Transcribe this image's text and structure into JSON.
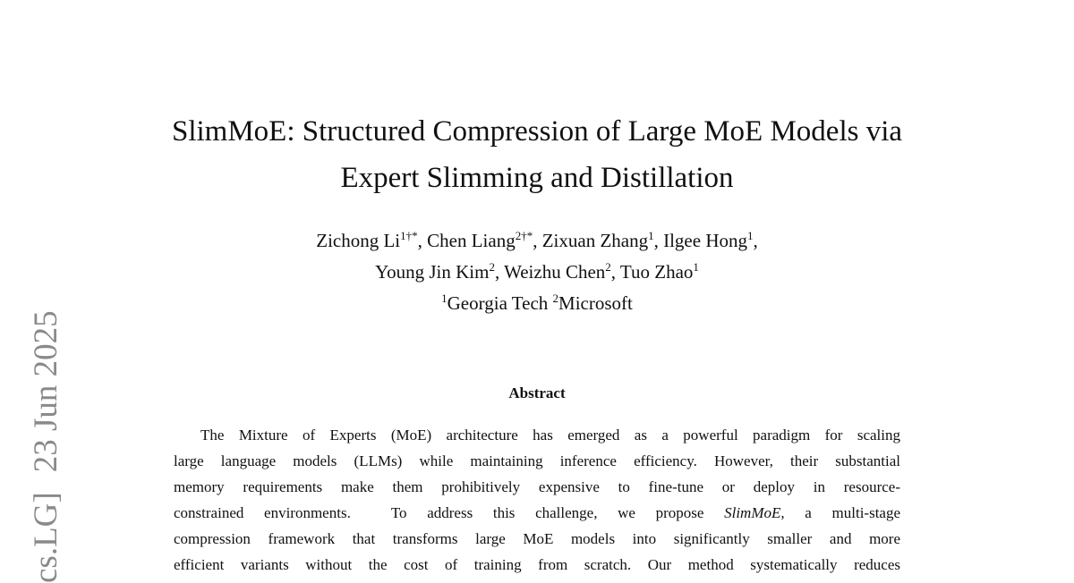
{
  "side_stamp": {
    "category": "cs.LG]",
    "date": "23 Jun 2025"
  },
  "title": {
    "lines": [
      "SlimMoE: Structured Compression of Large MoE Models via",
      "Expert Slimming and Distillation"
    ]
  },
  "authors": {
    "lines": [
      [
        {
          "name": "Zichong Li",
          "sup": "1†*",
          "sep": ","
        },
        {
          "name": "Chen Liang",
          "sup": "2†*",
          "sep": ","
        },
        {
          "name": "Zixuan Zhang",
          "sup": "1",
          "sep": ","
        },
        {
          "name": "Ilgee Hong",
          "sup": "1",
          "sep": ","
        }
      ],
      [
        {
          "name": "Young Jin Kim",
          "sup": "2",
          "sep": ","
        },
        {
          "name": "Weizhu Chen",
          "sup": "2",
          "sep": ","
        },
        {
          "name": "Tuo Zhao",
          "sup": "1"
        }
      ]
    ]
  },
  "affiliations": [
    {
      "sup": "1",
      "name": "Georgia Tech"
    },
    {
      "sup": "2",
      "name": "Microsoft"
    }
  ],
  "abstract": {
    "heading": "Abstract",
    "lines": [
      [
        {
          "text": "The Mixture of Experts (MoE) architecture has emerged as a powerful paradigm for scaling"
        }
      ],
      [
        {
          "text": "large language models (LLMs) while maintaining inference efficiency. However, their substantial"
        }
      ],
      [
        {
          "text": "memory requirements make them prohibitively expensive to fine-tune or deploy in resource-"
        }
      ],
      [
        {
          "text": "constrained environments.  To address this challenge, we propose "
        },
        {
          "text": "SlimMoE",
          "italic": true
        },
        {
          "text": ", a multi-stage"
        }
      ],
      [
        {
          "text": "compression framework that transforms large MoE models into significantly smaller and more"
        }
      ],
      [
        {
          "text": "efficient variants without the cost of training from scratch. Our method systematically reduces"
        }
      ]
    ]
  }
}
